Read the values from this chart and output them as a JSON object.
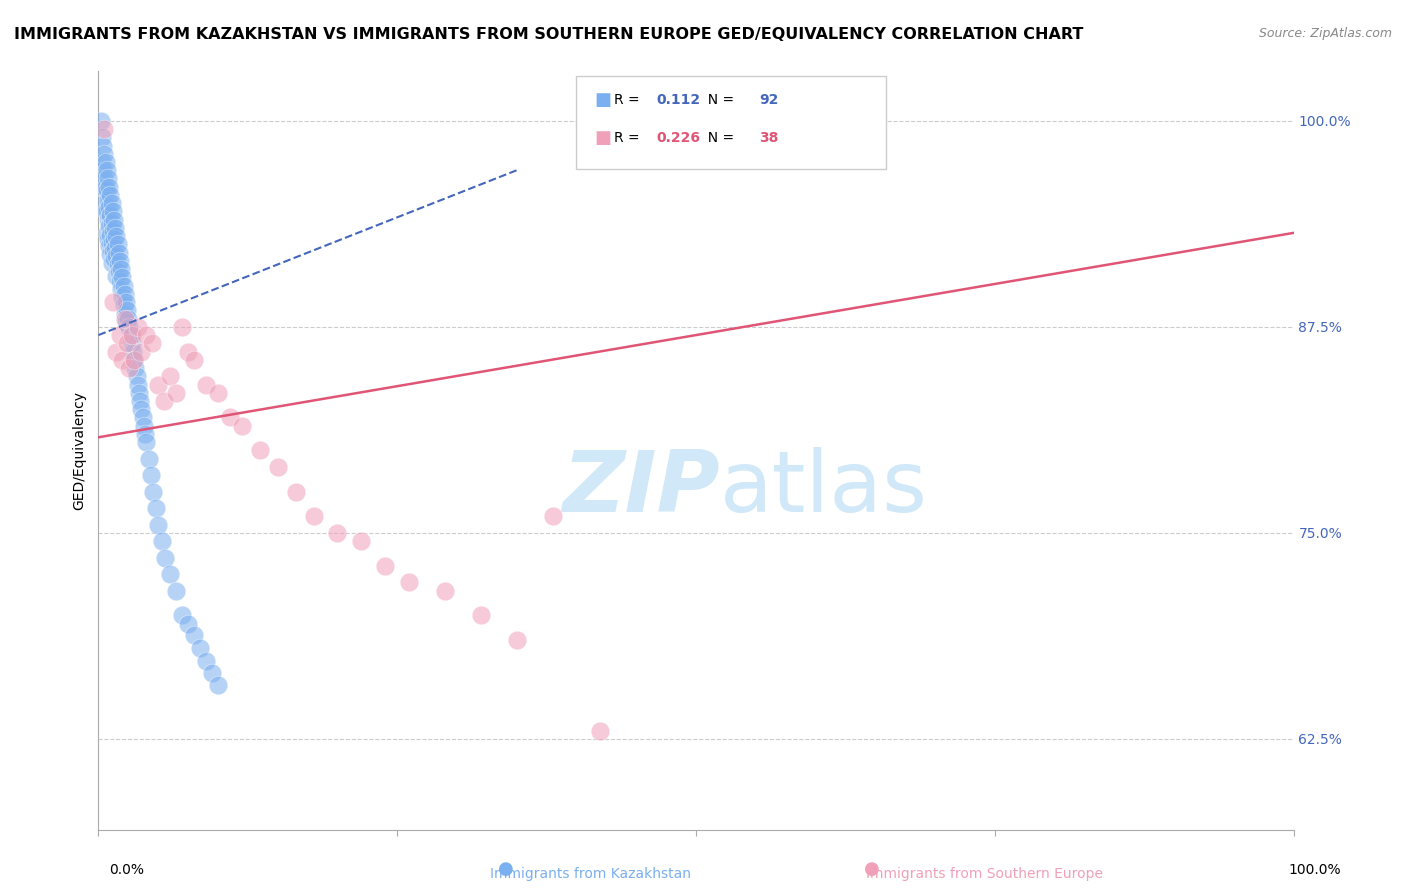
{
  "title": "IMMIGRANTS FROM KAZAKHSTAN VS IMMIGRANTS FROM SOUTHERN EUROPE GED/EQUIVALENCY CORRELATION CHART",
  "source": "Source: ZipAtlas.com",
  "ylabel": "GED/Equivalency",
  "ytick_labels": [
    "62.5%",
    "75.0%",
    "87.5%",
    "100.0%"
  ],
  "ytick_values": [
    0.625,
    0.75,
    0.875,
    1.0
  ],
  "legend_blue_r_val": "0.112",
  "legend_blue_n_val": "92",
  "legend_pink_r_val": "0.226",
  "legend_pink_n_val": "38",
  "legend_label_blue": "Immigrants from Kazakhstan",
  "legend_label_pink": "Immigrants from Southern Europe",
  "blue_color": "#7aaff0",
  "pink_color": "#f0a0b8",
  "trend_blue_color": "#4466bb",
  "trend_pink_color": "#e05575",
  "label_color": "#4466bb",
  "watermark_part1": "ZIP",
  "watermark_part2": "atlas",
  "watermark_color": "#d0e8f8",
  "xmin": 0.0,
  "xmax": 1.0,
  "ymin": 0.57,
  "ymax": 1.03,
  "blue_x": [
    0.002,
    0.003,
    0.003,
    0.004,
    0.004,
    0.004,
    0.005,
    0.005,
    0.005,
    0.006,
    0.006,
    0.006,
    0.007,
    0.007,
    0.007,
    0.007,
    0.008,
    0.008,
    0.008,
    0.008,
    0.009,
    0.009,
    0.009,
    0.009,
    0.01,
    0.01,
    0.01,
    0.01,
    0.011,
    0.011,
    0.011,
    0.011,
    0.012,
    0.012,
    0.012,
    0.013,
    0.013,
    0.013,
    0.014,
    0.014,
    0.015,
    0.015,
    0.015,
    0.016,
    0.016,
    0.017,
    0.017,
    0.018,
    0.018,
    0.019,
    0.019,
    0.02,
    0.02,
    0.021,
    0.021,
    0.022,
    0.022,
    0.023,
    0.023,
    0.024,
    0.025,
    0.026,
    0.027,
    0.028,
    0.029,
    0.03,
    0.031,
    0.032,
    0.033,
    0.034,
    0.035,
    0.036,
    0.037,
    0.038,
    0.039,
    0.04,
    0.042,
    0.044,
    0.046,
    0.048,
    0.05,
    0.053,
    0.056,
    0.06,
    0.065,
    0.07,
    0.075,
    0.08,
    0.085,
    0.09,
    0.095,
    0.1
  ],
  "blue_y": [
    1.0,
    0.99,
    0.975,
    0.985,
    0.97,
    0.96,
    0.98,
    0.965,
    0.95,
    0.975,
    0.96,
    0.945,
    0.97,
    0.958,
    0.945,
    0.932,
    0.965,
    0.952,
    0.94,
    0.928,
    0.96,
    0.948,
    0.936,
    0.924,
    0.955,
    0.943,
    0.931,
    0.919,
    0.95,
    0.938,
    0.926,
    0.914,
    0.945,
    0.933,
    0.921,
    0.94,
    0.928,
    0.916,
    0.935,
    0.923,
    0.93,
    0.918,
    0.906,
    0.925,
    0.913,
    0.92,
    0.908,
    0.915,
    0.903,
    0.91,
    0.898,
    0.905,
    0.893,
    0.9,
    0.888,
    0.895,
    0.883,
    0.89,
    0.878,
    0.885,
    0.88,
    0.875,
    0.87,
    0.865,
    0.86,
    0.855,
    0.85,
    0.845,
    0.84,
    0.835,
    0.83,
    0.825,
    0.82,
    0.815,
    0.81,
    0.805,
    0.795,
    0.785,
    0.775,
    0.765,
    0.755,
    0.745,
    0.735,
    0.725,
    0.715,
    0.7,
    0.695,
    0.688,
    0.68,
    0.672,
    0.665,
    0.658
  ],
  "pink_x": [
    0.005,
    0.012,
    0.015,
    0.018,
    0.02,
    0.022,
    0.024,
    0.026,
    0.028,
    0.03,
    0.033,
    0.036,
    0.04,
    0.045,
    0.05,
    0.055,
    0.06,
    0.065,
    0.07,
    0.075,
    0.08,
    0.09,
    0.1,
    0.11,
    0.12,
    0.135,
    0.15,
    0.165,
    0.18,
    0.2,
    0.22,
    0.24,
    0.26,
    0.29,
    0.32,
    0.35,
    0.38,
    0.42
  ],
  "pink_y": [
    0.995,
    0.89,
    0.86,
    0.87,
    0.855,
    0.88,
    0.865,
    0.85,
    0.87,
    0.855,
    0.875,
    0.86,
    0.87,
    0.865,
    0.84,
    0.83,
    0.845,
    0.835,
    0.875,
    0.86,
    0.855,
    0.84,
    0.835,
    0.82,
    0.815,
    0.8,
    0.79,
    0.775,
    0.76,
    0.75,
    0.745,
    0.73,
    0.72,
    0.715,
    0.7,
    0.685,
    0.76,
    0.63
  ],
  "blue_trend_x": [
    0.0,
    0.35
  ],
  "blue_trend_y": [
    0.87,
    0.97
  ],
  "pink_trend_x": [
    0.0,
    1.0
  ],
  "pink_trend_y": [
    0.808,
    0.932
  ],
  "bg_color": "#ffffff",
  "grid_color": "#cccccc",
  "title_fontsize": 11.5,
  "axis_fontsize": 10,
  "tick_fontsize": 10
}
